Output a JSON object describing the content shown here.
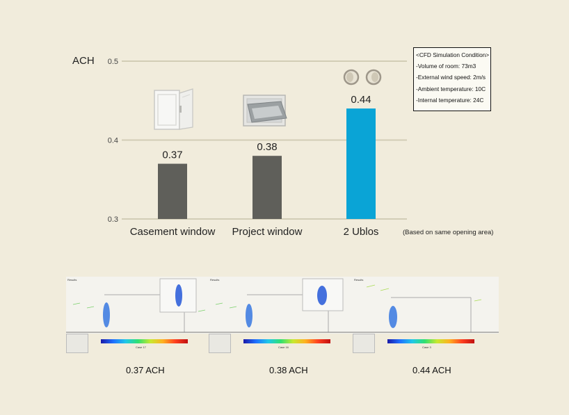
{
  "chart_data": {
    "type": "bar",
    "ylabel": "ACH",
    "ylim": [
      0.3,
      0.5
    ],
    "yticks": [
      "0.3",
      "0.4",
      "0.5"
    ],
    "categories": [
      "Casement window",
      "Project window",
      "2 Ublos"
    ],
    "values": [
      0.37,
      0.38,
      0.44
    ],
    "value_labels": [
      "0.37",
      "0.38",
      "0.44"
    ],
    "bar_colors": [
      "#5f5f5a",
      "#5f5f5a",
      "#0aa4d6"
    ],
    "grid": true
  },
  "conditions": {
    "title": "<CFD Simulation Condition>",
    "lines": [
      "-Volume of room: 73m3",
      "-External wind speed: 2m/s",
      "-Ambient temperature: 10C",
      "-Internal temperature: 24C"
    ]
  },
  "note": "(Based on same opening area)",
  "simulations": [
    {
      "title": "Results",
      "case": "Case 17",
      "result": "0.37 ACH"
    },
    {
      "title": "Results",
      "case": "Case 16",
      "result": "0.38 ACH"
    },
    {
      "title": "Results",
      "case": "Case 3",
      "result": "0.44 ACH"
    }
  ],
  "icons": [
    "casement-window-icon",
    "project-window-icon",
    "ublos-window-icon"
  ]
}
